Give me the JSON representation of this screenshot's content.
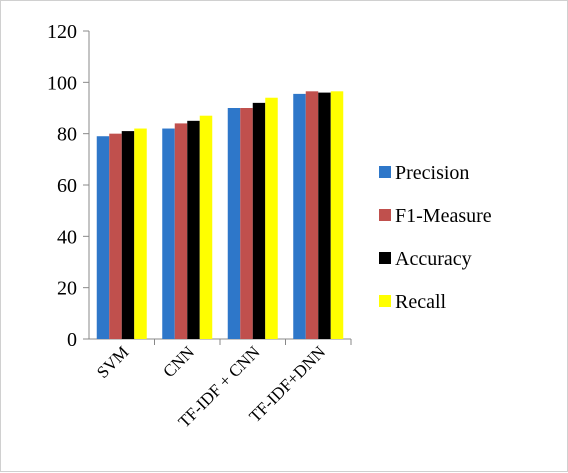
{
  "chart_data": {
    "type": "bar",
    "categories": [
      "SVM",
      "CNN",
      "TF-IDF + CNN",
      "TF-IDF+DNN"
    ],
    "series": [
      {
        "name": "Precision",
        "color": "#2e77c9",
        "values": [
          79,
          82,
          90,
          95.5
        ]
      },
      {
        "name": "F1-Measure",
        "color": "#c0504d",
        "values": [
          80,
          84,
          90,
          96.5
        ]
      },
      {
        "name": "Accuracy",
        "color": "#000000",
        "values": [
          81,
          85,
          92,
          96
        ]
      },
      {
        "name": "Recall",
        "color": "#ffff00",
        "values": [
          82,
          87,
          94,
          96.5
        ]
      }
    ],
    "yticks": [
      "0",
      "20",
      "40",
      "60",
      "80",
      "100",
      "120"
    ],
    "ylim": [
      0,
      120
    ],
    "grid": false,
    "legend_position": "right",
    "title": "",
    "xlabel": "",
    "ylabel": ""
  }
}
